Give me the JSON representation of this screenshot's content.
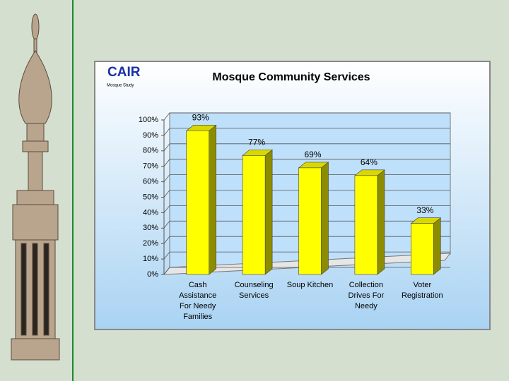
{
  "logo": {
    "name": "CAIR",
    "subtitle": "Mosque Study"
  },
  "chart_data": {
    "type": "bar",
    "title": "Mosque Community Services",
    "categories": [
      "Cash Assistance For Needy Families",
      "Counseling Services",
      "Soup Kitchen",
      "Collection Drives For Needy",
      "Voter Registration"
    ],
    "values": [
      93,
      77,
      69,
      64,
      33
    ],
    "value_labels": [
      "93%",
      "77%",
      "69%",
      "64%",
      "33%"
    ],
    "color": "#ffff00",
    "ylim": [
      0,
      100
    ],
    "yticks": [
      {
        "value": 0,
        "label": "0%"
      },
      {
        "value": 10,
        "label": "10%"
      },
      {
        "value": 20,
        "label": "20%"
      },
      {
        "value": 30,
        "label": "30%"
      },
      {
        "value": 40,
        "label": "40%"
      },
      {
        "value": 50,
        "label": "50%"
      },
      {
        "value": 60,
        "label": "60%"
      },
      {
        "value": 70,
        "label": "70%"
      },
      {
        "value": 80,
        "label": "80%"
      },
      {
        "value": 90,
        "label": "90%"
      },
      {
        "value": 100,
        "label": "100%"
      }
    ],
    "grid": true
  }
}
